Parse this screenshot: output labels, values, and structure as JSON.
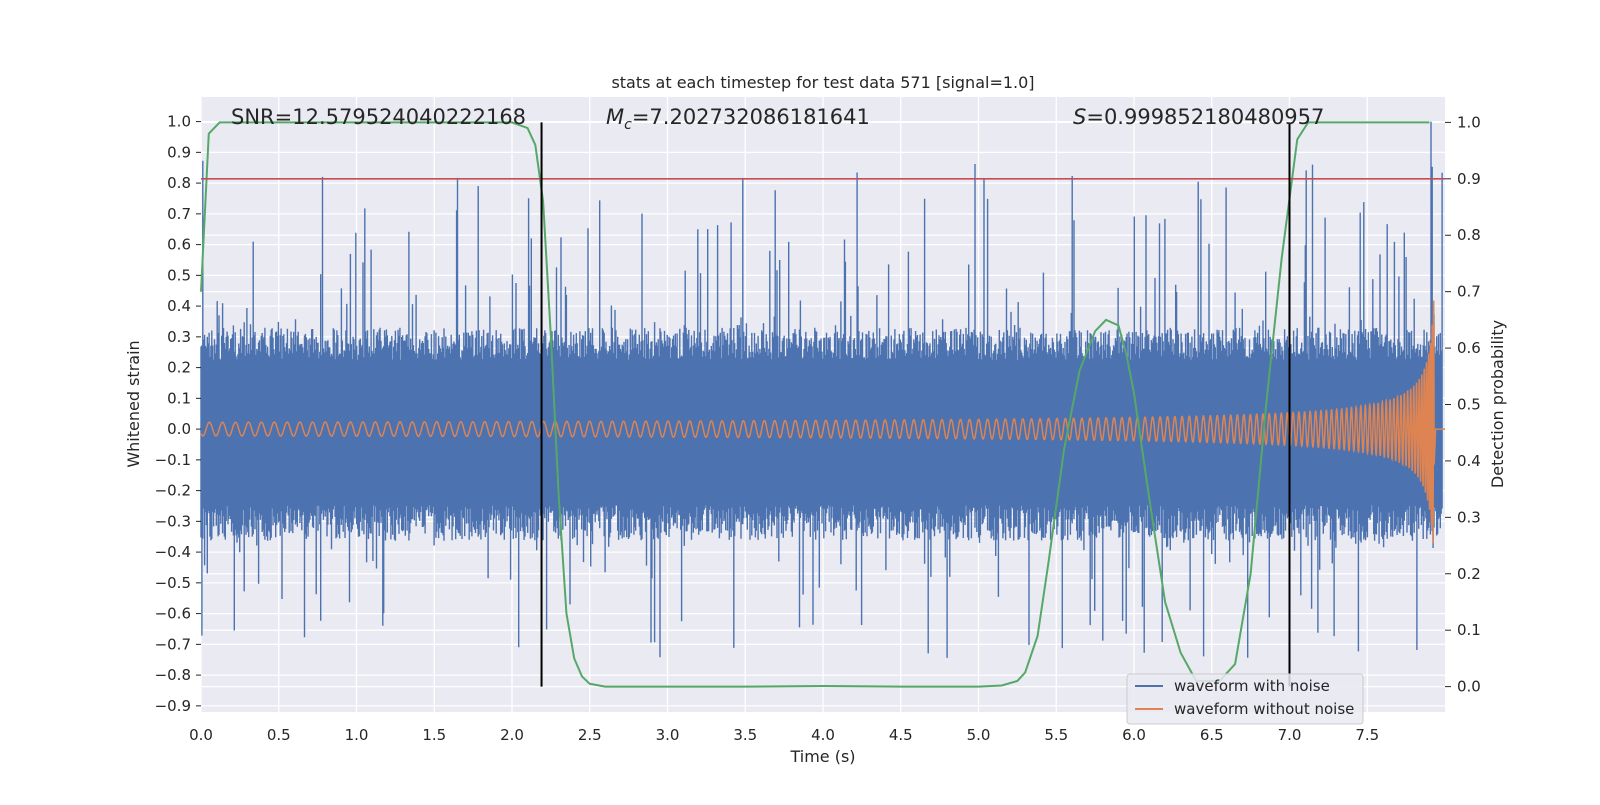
{
  "chart_data": {
    "type": "line",
    "title": "stats at each timestep for test data 571 [signal=1.0]",
    "xlabel": "Time (s)",
    "ylabel": "Whitened strain",
    "y2label": "Detection probability",
    "xlim": [
      0.0,
      8.0
    ],
    "ylim": [
      -0.92,
      1.08
    ],
    "y2lim": [
      -0.045,
      1.045
    ],
    "xticks": [
      0.0,
      0.5,
      1.0,
      1.5,
      2.0,
      2.5,
      3.0,
      3.5,
      4.0,
      4.5,
      5.0,
      5.5,
      6.0,
      6.5,
      7.0,
      7.5
    ],
    "xtick_labels": [
      "0.0",
      "0.5",
      "1.0",
      "1.5",
      "2.0",
      "2.5",
      "3.0",
      "3.5",
      "4.0",
      "4.5",
      "5.0",
      "5.5",
      "6.0",
      "6.5",
      "7.0",
      "7.5"
    ],
    "yticks": [
      1.0,
      0.9,
      0.8,
      0.7,
      0.6,
      0.5,
      0.4,
      0.3,
      0.2,
      0.1,
      0.0,
      -0.1,
      -0.2,
      -0.3,
      -0.4,
      -0.5,
      -0.6,
      -0.7,
      -0.8,
      -0.9
    ],
    "ytick_labels": [
      "1.0",
      "0.9",
      "0.8",
      "0.7",
      "0.6",
      "0.5",
      "0.4",
      "0.3",
      "0.2",
      "0.1",
      "0.0",
      "−0.1",
      "−0.2",
      "−0.3",
      "−0.4",
      "−0.5",
      "−0.6",
      "−0.7",
      "−0.8",
      "−0.9"
    ],
    "y2ticks": [
      1.0,
      0.9,
      0.8,
      0.7,
      0.6,
      0.5,
      0.4,
      0.3,
      0.2,
      0.1,
      0.0
    ],
    "y2tick_labels": [
      "1.0",
      "0.9",
      "0.8",
      "0.7",
      "0.6",
      "0.5",
      "0.4",
      "0.3",
      "0.2",
      "0.1",
      "0.0"
    ],
    "grid": true,
    "legend_position": "bottom-right",
    "annotations": {
      "snr": "SNR=12.579524040222168",
      "mc_symbol": "M",
      "mc_subscript": "c",
      "mc_value": "=7.202732086181641",
      "s_symbol": "S",
      "s_value": "=0.999852180480957"
    },
    "series": [
      {
        "name": "waveform with noise",
        "color": "#4c72b0",
        "axis": "left",
        "noise_envelope_upper": 0.3,
        "noise_envelope_lower": -0.33,
        "peak_max": 1.0,
        "peak_min": -0.82
      },
      {
        "name": "waveform without noise",
        "color": "#dd8452",
        "axis": "left",
        "chirp": {
          "t_start": 0.0,
          "t_merger": 7.93,
          "amplitude_start": 0.01,
          "amplitude_end": 0.45
        }
      },
      {
        "color": "#55a868",
        "axis": "right",
        "x": [
          0.0,
          0.05,
          0.12,
          0.3,
          1.0,
          1.5,
          2.0,
          2.1,
          2.15,
          2.2,
          2.25,
          2.3,
          2.35,
          2.4,
          2.45,
          2.5,
          2.6,
          3.0,
          3.5,
          4.0,
          4.5,
          5.0,
          5.15,
          5.25,
          5.3,
          5.38,
          5.45,
          5.55,
          5.65,
          5.75,
          5.82,
          5.9,
          5.95,
          6.0,
          6.1,
          6.2,
          6.3,
          6.4,
          6.55,
          6.65,
          6.75,
          6.85,
          6.95,
          7.05,
          7.12,
          7.2,
          7.5,
          7.9
        ],
        "y": [
          0.7,
          0.98,
          1.0,
          1.0,
          1.0,
          1.0,
          1.0,
          0.99,
          0.96,
          0.86,
          0.62,
          0.34,
          0.13,
          0.05,
          0.018,
          0.005,
          0.0,
          0.0,
          0.0,
          0.001,
          0.0,
          0.0,
          0.002,
          0.01,
          0.025,
          0.09,
          0.22,
          0.42,
          0.56,
          0.63,
          0.65,
          0.64,
          0.59,
          0.52,
          0.33,
          0.15,
          0.06,
          0.01,
          0.01,
          0.04,
          0.2,
          0.5,
          0.76,
          0.97,
          1.0,
          1.0,
          1.0,
          1.0
        ]
      }
    ],
    "hlines": [
      {
        "axis": "right",
        "y": 0.9,
        "color": "#c44e52"
      }
    ],
    "vlines": [
      {
        "x": 2.19,
        "ymin": 0.0,
        "ymax": 1.0,
        "axis": "right",
        "color": "#000000"
      },
      {
        "x": 7.0,
        "ymin": 0.0,
        "ymax": 1.0,
        "axis": "right",
        "color": "#000000"
      }
    ],
    "colors": {
      "plot_background": "#eaeaf2",
      "grid": "#ffffff",
      "text": "#262626"
    }
  }
}
